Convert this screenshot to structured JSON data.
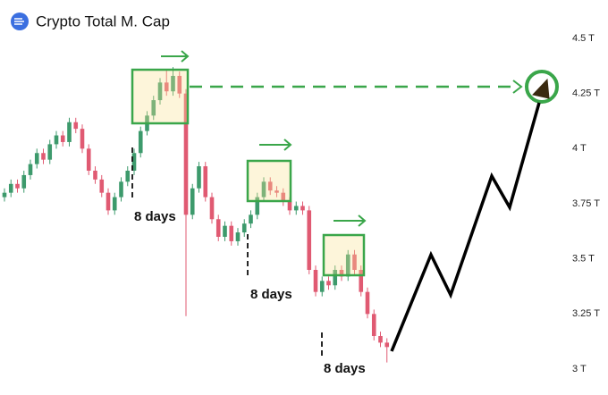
{
  "chart_data": {
    "type": "candlestick",
    "title": "Crypto Total M. Cap",
    "ylim": [
      3,
      4.5
    ],
    "yticks": [
      {
        "value": 3,
        "label": "3 T"
      },
      {
        "value": 3.25,
        "label": "3.25 T"
      },
      {
        "value": 3.5,
        "label": "3.5 T"
      },
      {
        "value": 3.75,
        "label": "3.75 T"
      },
      {
        "value": 4,
        "label": "4 T"
      },
      {
        "value": 4.25,
        "label": "4.25 T"
      },
      {
        "value": 4.5,
        "label": "4.5 T"
      }
    ],
    "up_color": "#3d9a6c",
    "down_color": "#e05a72",
    "open": [
      3.78,
      3.8,
      3.84,
      3.82,
      3.88,
      3.93,
      3.98,
      3.95,
      4.02,
      4.06,
      4.03,
      4.12,
      4.09,
      4.0,
      3.9,
      3.86,
      3.8,
      3.72,
      3.78,
      3.85,
      3.9,
      3.98,
      4.08,
      4.15,
      4.22,
      4.3,
      4.26,
      4.33,
      4.25,
      3.7,
      3.82,
      3.92,
      3.78,
      3.68,
      3.6,
      3.65,
      3.58,
      3.62,
      3.66,
      3.7,
      3.78,
      3.85,
      3.81,
      3.8,
      3.76,
      3.72,
      3.74,
      3.72,
      3.45,
      3.35,
      3.4,
      3.38,
      3.45,
      3.42,
      3.52,
      3.45,
      3.35,
      3.25,
      3.15,
      3.12
    ],
    "high": [
      3.82,
      3.86,
      3.86,
      3.9,
      3.95,
      4.0,
      4.0,
      4.04,
      4.08,
      4.08,
      4.14,
      4.14,
      4.11,
      4.02,
      3.92,
      3.88,
      3.82,
      3.8,
      3.87,
      3.92,
      4.0,
      4.1,
      4.17,
      4.24,
      4.32,
      4.36,
      4.37,
      4.35,
      4.27,
      3.84,
      3.94,
      3.94,
      3.8,
      3.7,
      3.67,
      3.67,
      3.64,
      3.68,
      3.72,
      3.8,
      3.87,
      3.87,
      3.83,
      3.82,
      3.78,
      3.76,
      3.76,
      3.74,
      3.47,
      3.42,
      3.42,
      3.47,
      3.47,
      3.54,
      3.54,
      3.47,
      3.37,
      3.27,
      3.17,
      3.14
    ],
    "low": [
      3.76,
      3.78,
      3.8,
      3.8,
      3.86,
      3.91,
      3.93,
      3.93,
      4.0,
      4.01,
      4.01,
      4.07,
      3.98,
      3.88,
      3.84,
      3.78,
      3.7,
      3.7,
      3.76,
      3.83,
      3.88,
      3.96,
      4.06,
      4.13,
      4.2,
      4.24,
      4.24,
      4.23,
      3.24,
      3.68,
      3.8,
      3.76,
      3.66,
      3.58,
      3.58,
      3.56,
      3.56,
      3.6,
      3.64,
      3.68,
      3.76,
      3.79,
      3.78,
      3.74,
      3.7,
      3.7,
      3.7,
      3.43,
      3.33,
      3.33,
      3.36,
      3.36,
      3.4,
      3.4,
      3.43,
      3.33,
      3.23,
      3.13,
      3.1,
      3.03
    ],
    "close": [
      3.8,
      3.84,
      3.82,
      3.88,
      3.93,
      3.98,
      3.95,
      4.02,
      4.06,
      4.03,
      4.12,
      4.09,
      4.0,
      3.9,
      3.86,
      3.8,
      3.72,
      3.78,
      3.85,
      3.9,
      3.98,
      4.08,
      4.15,
      4.22,
      4.3,
      4.26,
      4.33,
      4.25,
      3.7,
      3.82,
      3.92,
      3.78,
      3.68,
      3.6,
      3.65,
      3.58,
      3.62,
      3.66,
      3.7,
      3.78,
      3.85,
      3.81,
      3.8,
      3.76,
      3.72,
      3.74,
      3.72,
      3.45,
      3.35,
      3.4,
      3.38,
      3.45,
      3.42,
      3.52,
      3.45,
      3.35,
      3.25,
      3.15,
      3.12,
      3.1
    ],
    "annotations": [
      "8 days",
      "8 days",
      "8 days"
    ]
  }
}
